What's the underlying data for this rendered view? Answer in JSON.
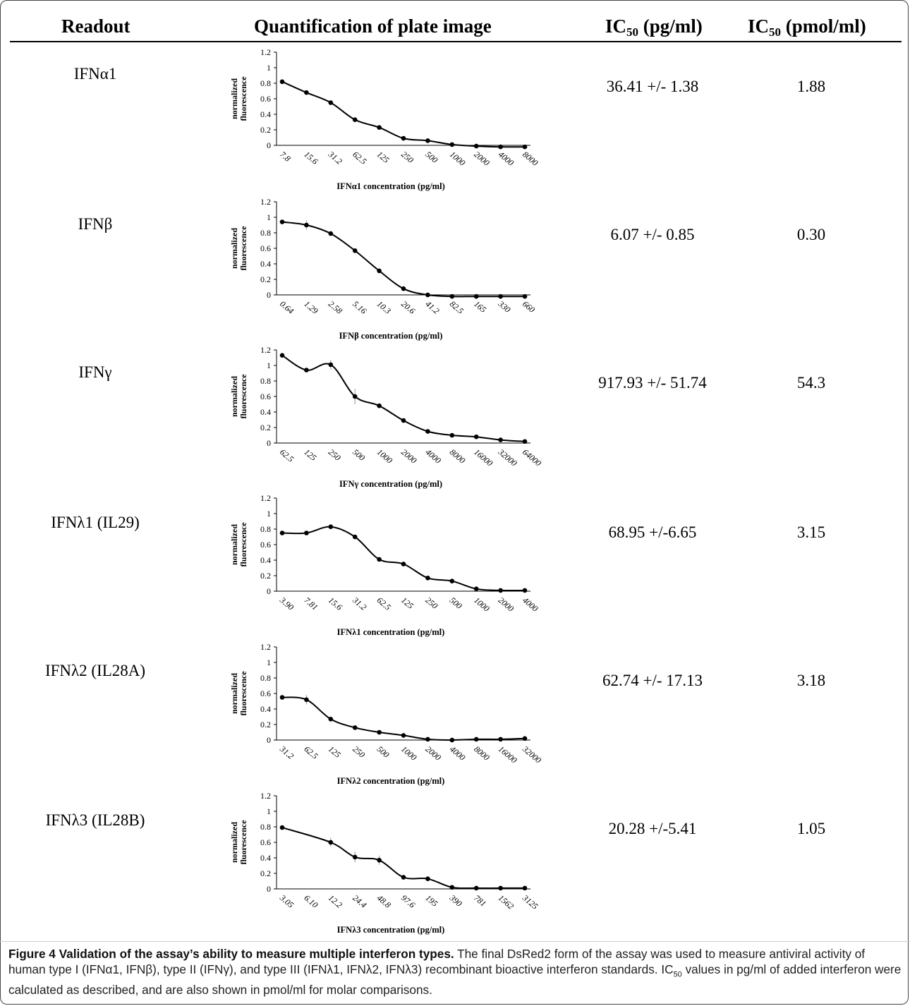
{
  "header": {
    "readout": "Readout",
    "quantification": "Quantification  of plate image",
    "ic50_pg_main": "IC",
    "ic50_pg_sub": "50",
    "ic50_pg_unit": " (pg/ml)",
    "ic50_pmol_main": "IC",
    "ic50_pmol_sub": "50",
    "ic50_pmol_unit": " (pmol/ml)"
  },
  "rows": [
    {
      "readout": "IFNα1",
      "ic50_pg": "36.41 +/- 1.38",
      "ic50_pmol": "1.88"
    },
    {
      "readout": "IFNβ",
      "ic50_pg": "6.07 +/- 0.85",
      "ic50_pmol": "0.30"
    },
    {
      "readout": "IFNγ",
      "ic50_pg": "917.93 +/- 51.74",
      "ic50_pmol": "54.3"
    },
    {
      "readout": "IFNλ1 (IL29)",
      "ic50_pg": "68.95 +/-6.65",
      "ic50_pmol": "3.15"
    },
    {
      "readout": "IFNλ2 (IL28A)",
      "ic50_pg": "62.74 +/- 17.13",
      "ic50_pmol": "3.18"
    },
    {
      "readout": "IFNλ3 (IL28B)",
      "ic50_pg": "20.28 +/-5.41",
      "ic50_pmol": "1.05"
    }
  ],
  "chart_data": [
    {
      "type": "line",
      "xlabel": "IFNα1 concentration (pg/ml)",
      "ylabel": [
        "normalized",
        "fluorescence"
      ],
      "ylim": [
        0,
        1.2
      ],
      "yticks": [
        "0",
        "0.2",
        "0.4",
        "0.6",
        "0.8",
        "1",
        "1.2"
      ],
      "categories": [
        "7.8",
        "15.6",
        "31.2",
        "62.5",
        "125",
        "250",
        "500",
        "1000",
        "2000",
        "4000",
        "8000"
      ],
      "values": [
        0.82,
        0.68,
        0.55,
        0.33,
        0.23,
        0.09,
        0.06,
        0.01,
        -0.01,
        -0.02,
        -0.02
      ],
      "errors": [
        0,
        0.02,
        0.02,
        0.01,
        0.01,
        0.01,
        0.01,
        0.01,
        0,
        0,
        0.01
      ]
    },
    {
      "type": "line",
      "xlabel": "IFNβ concentration (pg/ml)",
      "ylabel": [
        "normalized",
        "fluorescence"
      ],
      "ylim": [
        0,
        1.2
      ],
      "yticks": [
        "0",
        "0.2",
        "0.4",
        "0.6",
        "0.8",
        "1",
        "1.2"
      ],
      "categories": [
        "0.64",
        "1.29",
        "2.58",
        "5.16",
        "10.3",
        "20.6",
        "41.2",
        "82.5",
        "165",
        "330",
        "660"
      ],
      "values": [
        0.94,
        0.9,
        0.79,
        0.57,
        0.31,
        0.08,
        0,
        -0.02,
        -0.02,
        -0.02,
        -0.02
      ],
      "errors": [
        0.02,
        0.06,
        0.02,
        0.02,
        0.02,
        0.01,
        0,
        0,
        0,
        0,
        0
      ]
    },
    {
      "type": "line",
      "xlabel": "IFNγ concentration (pg/ml)",
      "ylabel": [
        "normalized",
        "fluorescence"
      ],
      "ylim": [
        0,
        1.2
      ],
      "yticks": [
        "0",
        "0.2",
        "0.4",
        "0.6",
        "0.8",
        "1",
        "1.2"
      ],
      "categories": [
        "62.5",
        "125",
        "250",
        "500",
        "1000",
        "2000",
        "4000",
        "8000",
        "16000",
        "32000",
        "64000"
      ],
      "values": [
        1.13,
        0.94,
        1.01,
        0.6,
        0.48,
        0.29,
        0.15,
        0.1,
        0.08,
        0.04,
        0.02
      ],
      "errors": [
        0.02,
        0.02,
        0.06,
        0.1,
        0.02,
        0.01,
        0.01,
        0.01,
        0.01,
        0.01,
        0.01
      ]
    },
    {
      "type": "line",
      "xlabel": "IFNλ1 concentration (pg/ml)",
      "ylabel": [
        "normalized",
        "fluorescence"
      ],
      "ylim": [
        0,
        1.2
      ],
      "yticks": [
        "0",
        "0.2",
        "0.4",
        "0.6",
        "0.8",
        "1",
        "1.2"
      ],
      "categories": [
        "3.90",
        "7.81",
        "15.6",
        "31.2",
        "62.5",
        "125",
        "250",
        "500",
        "1000",
        "2000",
        "4000"
      ],
      "values": [
        0.75,
        0.75,
        0.83,
        0.7,
        0.41,
        0.35,
        0.17,
        0.13,
        0.03,
        0.01,
        0.01
      ],
      "errors": [
        0.01,
        0.02,
        0.01,
        0.02,
        0.02,
        0.01,
        0.01,
        0.01,
        0.01,
        0,
        0
      ]
    },
    {
      "type": "line",
      "xlabel": "IFNλ2 concentration (pg/ml)",
      "ylabel": [
        "normalized",
        "fluorescence"
      ],
      "ylim": [
        0,
        1.2
      ],
      "yticks": [
        "0",
        "0.2",
        "0.4",
        "0.6",
        "0.8",
        "1",
        "1.2"
      ],
      "categories": [
        "31.2",
        "62.5",
        "125",
        "250",
        "500",
        "1000",
        "2000",
        "4000",
        "8000",
        "16000",
        "32000"
      ],
      "values": [
        0.55,
        0.52,
        0.27,
        0.16,
        0.1,
        0.06,
        0.01,
        0,
        0.01,
        0.01,
        0.02
      ],
      "errors": [
        0.02,
        0.06,
        0.02,
        0.01,
        0.01,
        0.01,
        0,
        0,
        0,
        0,
        0
      ]
    },
    {
      "type": "line",
      "xlabel": "IFNλ3 concentration (pg/ml)",
      "ylabel": [
        "normalized",
        "fluorescence"
      ],
      "ylim": [
        0,
        1.2
      ],
      "yticks": [
        "0",
        "0.2",
        "0.4",
        "0.6",
        "0.8",
        "1",
        "1.2"
      ],
      "categories": [
        "3.05",
        "6.10",
        "12.2",
        "24.4",
        "48.8",
        "97.6",
        "195",
        "390",
        "781",
        "1562",
        "3125"
      ],
      "values": [
        0.79,
        null,
        0.6,
        0.41,
        0.37,
        0.15,
        0.13,
        0.02,
        0.01,
        0.01,
        0.01
      ],
      "errors": [
        0,
        0,
        0.06,
        0.07,
        0.06,
        0.01,
        0.01,
        0.01,
        0,
        0,
        0
      ]
    }
  ],
  "caption": {
    "bold": "Figure 4 Validation of the assay’s ability to measure multiple interferon types.",
    "line1": " The final DsRed2 form of the assay was used to measure antiviral activity of human type I (IFNα1, IFNβ), type II (IFNγ), and type III (IFNλ1, IFNλ2, IFNλ3) recombinant bioactive interferon standards.",
    "line2_a": "IC",
    "line2_sub": "50",
    "line2_b": " values in pg/ml of added interferon were calculated as described, and are also shown in pmol/ml for molar comparisons."
  }
}
